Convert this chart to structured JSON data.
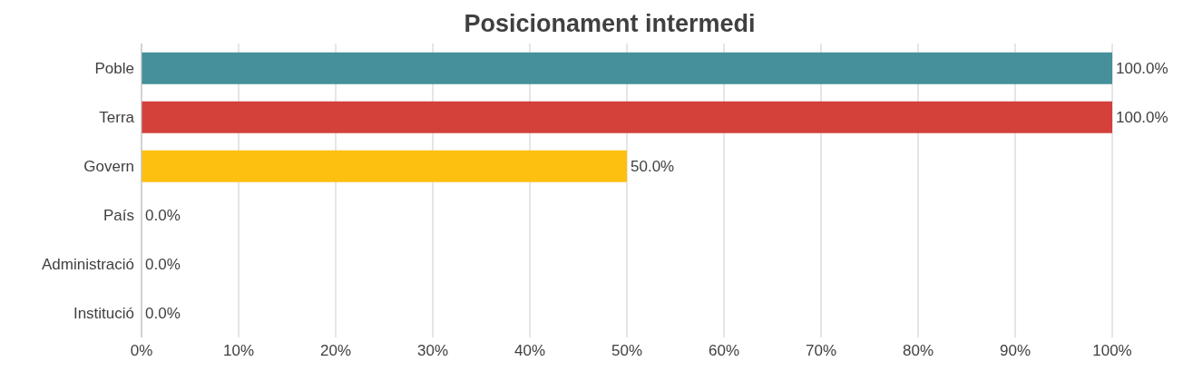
{
  "chart_data": {
    "type": "bar",
    "orientation": "horizontal",
    "title": "Posicionament intermedi",
    "categories": [
      "Poble",
      "Terra",
      "Govern",
      "País",
      "Administració",
      "Institució"
    ],
    "values": [
      100,
      100,
      50,
      0,
      0,
      0
    ],
    "colors": [
      "#45909a",
      "#d4403a",
      "#fdc010",
      "#7f7f7f",
      "#7f7f7f",
      "#7f7f7f"
    ],
    "value_labels": [
      "100.0%",
      "100.0%",
      "50.0%",
      "0.0%",
      "0.0%",
      "0.0%"
    ],
    "xlim": [
      0,
      100
    ],
    "xticks": [
      {
        "value": 0,
        "label": "0%"
      },
      {
        "value": 10,
        "label": "10%"
      },
      {
        "value": 20,
        "label": "20%"
      },
      {
        "value": 30,
        "label": "30%"
      },
      {
        "value": 40,
        "label": "40%"
      },
      {
        "value": 50,
        "label": "50%"
      },
      {
        "value": 60,
        "label": "60%"
      },
      {
        "value": 70,
        "label": "70%"
      },
      {
        "value": 80,
        "label": "80%"
      },
      {
        "value": 90,
        "label": "90%"
      },
      {
        "value": 100,
        "label": "100%"
      }
    ],
    "grid": "x",
    "legend": false
  }
}
